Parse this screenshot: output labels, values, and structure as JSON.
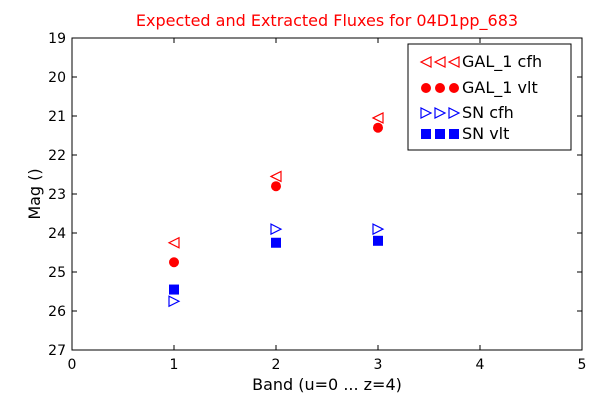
{
  "chart_data": {
    "type": "scatter",
    "title": "Expected and Extracted Fluxes for 04D1pp_683",
    "title_color": "#ff0000",
    "xlabel": "Band (u=0 ... z=4)",
    "ylabel": "Mag ()",
    "xlim": [
      0,
      5
    ],
    "ylim": [
      27,
      19
    ],
    "y_inverted": true,
    "x_ticks": [
      "0",
      "1",
      "2",
      "3",
      "4",
      "5"
    ],
    "y_ticks": [
      "19",
      "20",
      "21",
      "22",
      "23",
      "24",
      "25",
      "26",
      "27"
    ],
    "grid": false,
    "legend_position": "top-right",
    "series": [
      {
        "name": "GAL_1 cfh",
        "marker": "triangle-left-open",
        "color": "#ff0000",
        "x": [
          1,
          2,
          3
        ],
        "y": [
          24.25,
          22.55,
          21.05
        ]
      },
      {
        "name": "GAL_1 vlt",
        "marker": "circle-filled",
        "color": "#ff0000",
        "x": [
          1,
          2,
          3
        ],
        "y": [
          24.75,
          22.8,
          21.3
        ]
      },
      {
        "name": "SN cfh",
        "marker": "triangle-right-open",
        "color": "#0000ff",
        "x": [
          1,
          2,
          3
        ],
        "y": [
          25.75,
          23.9,
          23.9
        ]
      },
      {
        "name": "SN vlt",
        "marker": "square-filled",
        "color": "#0000ff",
        "x": [
          1,
          2,
          3
        ],
        "y": [
          25.45,
          24.25,
          24.2
        ]
      }
    ]
  }
}
